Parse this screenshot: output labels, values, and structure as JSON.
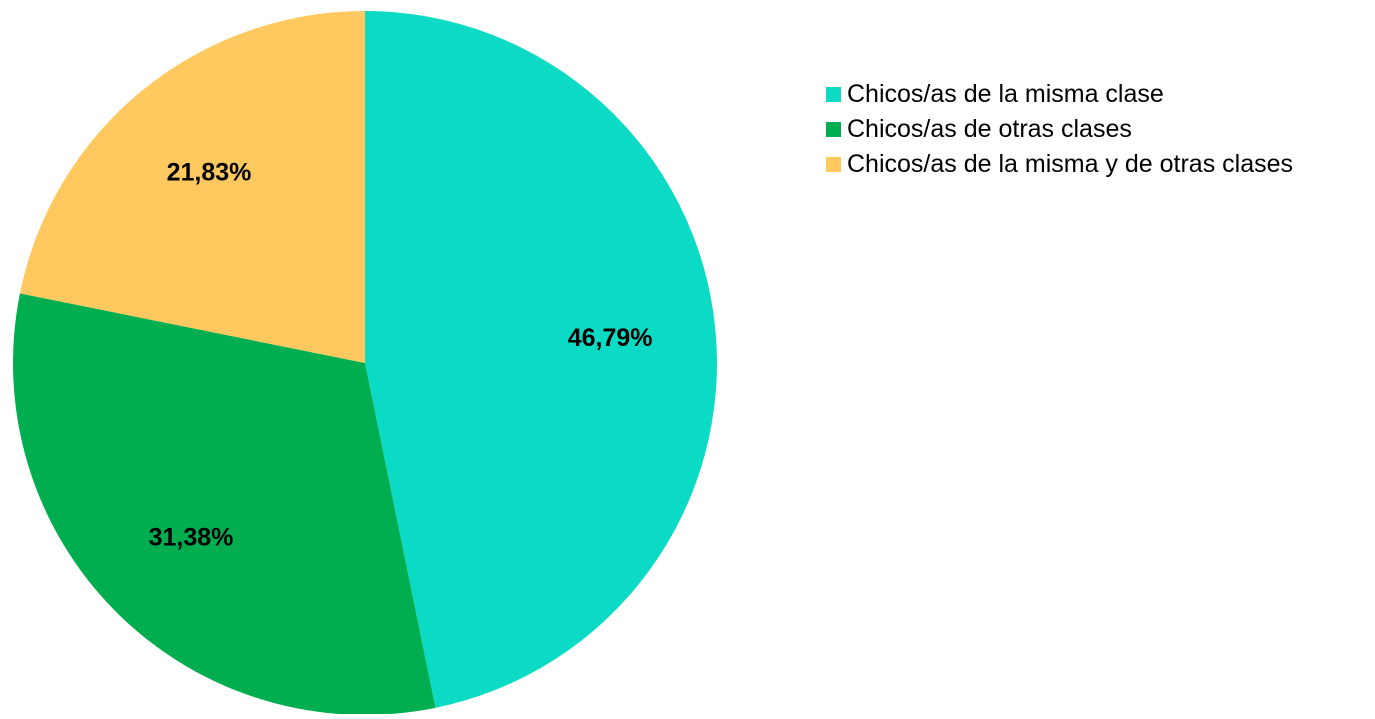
{
  "chart_data": {
    "type": "pie",
    "title": "",
    "slices": [
      {
        "name": "Chicos/as de la misma clase",
        "value": 46.79,
        "label": "46,79%",
        "color": "#0BDBC5"
      },
      {
        "name": "Chicos/as de otras clases",
        "value": 31.38,
        "label": "31,38%",
        "color": "#00AE50"
      },
      {
        "name": "Chicos/as de la misma y de otras clases",
        "value": 21.83,
        "label": "21,83%",
        "color": "#FFC95F"
      }
    ],
    "start_angle": "12 o'clock",
    "direction": "clockwise",
    "legend_position": "top-right",
    "legend": [
      {
        "label": "Chicos/as de la misma clase",
        "color": "#0BDBC5"
      },
      {
        "label": "Chicos/as de otras clases",
        "color": "#00AE50"
      },
      {
        "label": "Chicos/as de la misma y de otras clases",
        "color": "#FFC95F"
      }
    ]
  }
}
